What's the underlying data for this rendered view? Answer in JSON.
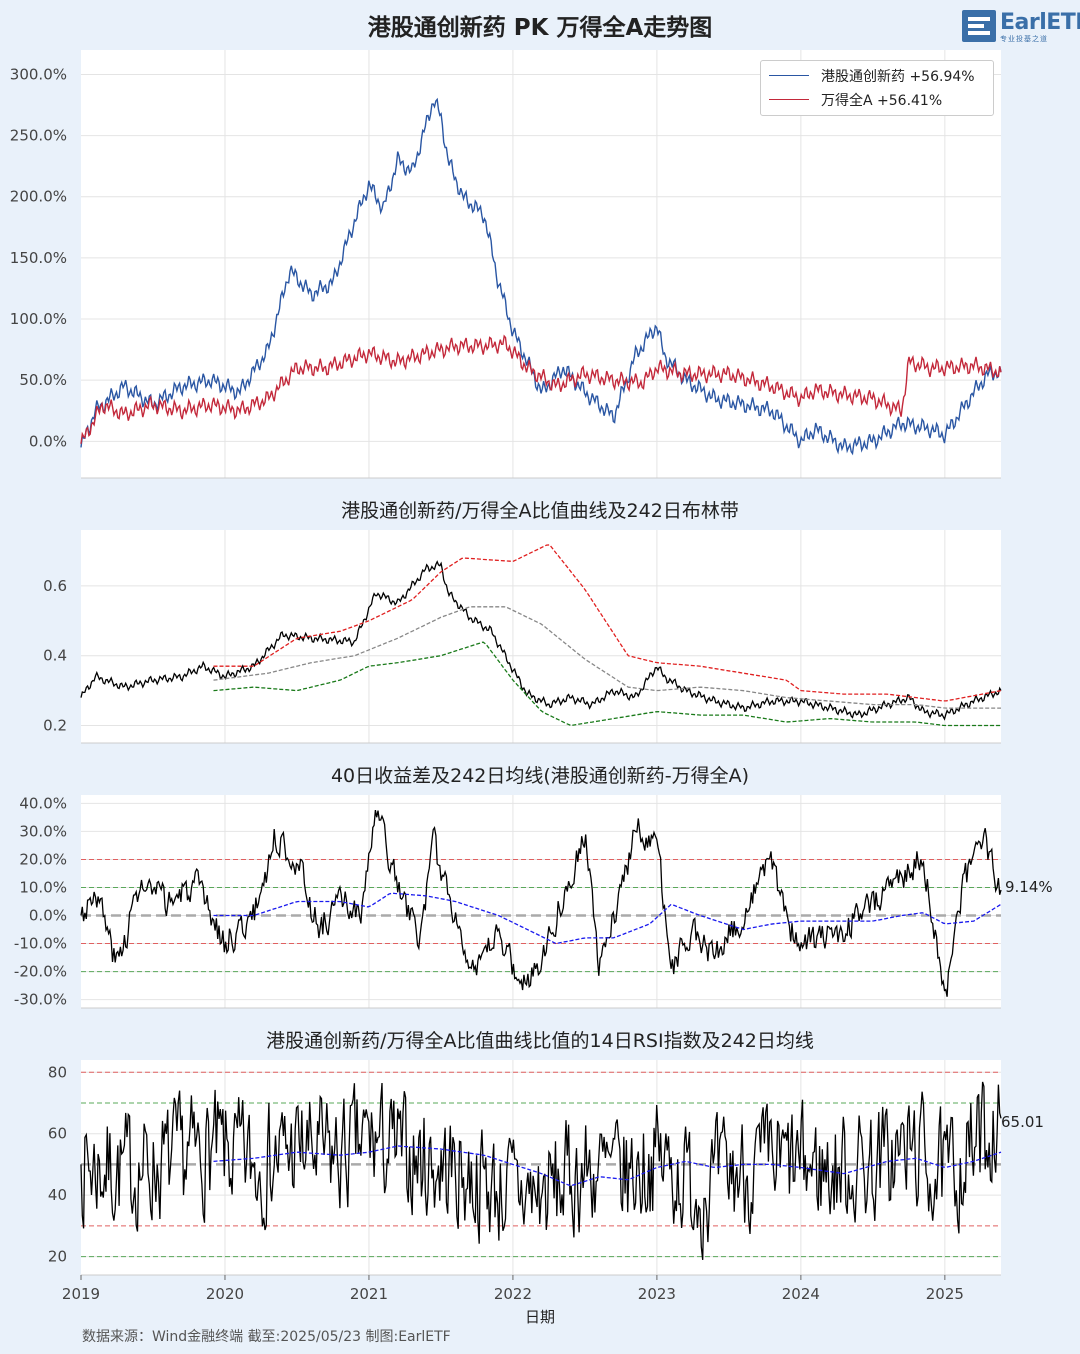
{
  "title": "港股通创新药 PK 万得全A走势图",
  "logo": {
    "text": "EarlETF",
    "subtitle": "专业投基之道"
  },
  "footer": "数据来源：Wind金融终端 截至:2025/05/23 制图:EarlETF",
  "chart_data": [
    {
      "type": "line",
      "title": "港股通创新药 PK 万得全A走势图",
      "ylim": [
        -0.3,
        3.2
      ],
      "yticks": [
        "0.0%",
        "50.0%",
        "100.0%",
        "150.0%",
        "200.0%",
        "250.0%",
        "300.0%"
      ],
      "legend": "top-right",
      "grid": true,
      "series": [
        {
          "name": "港股通创新药",
          "label": "港股通创新药  +56.94%",
          "color": "#2a56a3",
          "x": [
            2019.0,
            2019.1,
            2019.3,
            2019.5,
            2019.7,
            2019.9,
            2020.1,
            2020.3,
            2020.45,
            2020.6,
            2020.75,
            2020.9,
            2021.0,
            2021.1,
            2021.2,
            2021.3,
            2021.45,
            2021.5,
            2021.55,
            2021.65,
            2021.8,
            2021.9,
            2022.0,
            2022.2,
            2022.35,
            2022.5,
            2022.7,
            2022.85,
            2023.0,
            2023.05,
            2023.2,
            2023.4,
            2023.6,
            2023.8,
            2024.0,
            2024.1,
            2024.3,
            2024.5,
            2024.7,
            2024.9,
            2025.0,
            2025.2,
            2025.3,
            2025.39
          ],
          "values": [
            -0.05,
            0.25,
            0.45,
            0.3,
            0.45,
            0.5,
            0.4,
            0.75,
            1.4,
            1.2,
            1.3,
            1.8,
            2.1,
            1.9,
            2.3,
            2.2,
            2.8,
            2.65,
            2.3,
            2.0,
            1.85,
            1.3,
            0.9,
            0.4,
            0.6,
            0.4,
            0.2,
            0.7,
            0.95,
            0.7,
            0.5,
            0.35,
            0.3,
            0.25,
            0.0,
            0.1,
            -0.05,
            0.0,
            0.15,
            0.1,
            0.05,
            0.4,
            0.55,
            0.5694
          ]
        },
        {
          "name": "万得全A",
          "label": "万得全A  +56.41%",
          "color": "#c3283a",
          "x": [
            2019.0,
            2019.15,
            2019.3,
            2019.5,
            2019.7,
            2019.9,
            2020.1,
            2020.3,
            2020.5,
            2020.7,
            2020.9,
            2021.0,
            2021.2,
            2021.4,
            2021.6,
            2021.8,
            2021.95,
            2022.1,
            2022.3,
            2022.5,
            2022.7,
            2022.9,
            2023.0,
            2023.2,
            2023.5,
            2023.8,
            2024.0,
            2024.1,
            2024.3,
            2024.5,
            2024.7,
            2024.75,
            2024.9,
            2025.0,
            2025.2,
            2025.39
          ],
          "values": [
            -0.02,
            0.3,
            0.22,
            0.3,
            0.25,
            0.3,
            0.25,
            0.35,
            0.6,
            0.6,
            0.68,
            0.72,
            0.65,
            0.72,
            0.78,
            0.78,
            0.8,
            0.6,
            0.45,
            0.55,
            0.5,
            0.48,
            0.6,
            0.55,
            0.55,
            0.45,
            0.35,
            0.42,
            0.38,
            0.35,
            0.25,
            0.65,
            0.6,
            0.6,
            0.62,
            0.5641
          ]
        }
      ]
    },
    {
      "type": "line",
      "title": "港股通创新药/万得全A比值曲线及242日布林带",
      "ylim": [
        0.15,
        0.76
      ],
      "yticks": [
        "0.2",
        "0.4",
        "0.6"
      ],
      "grid": true,
      "series": [
        {
          "role": "ratio",
          "color": "#000000",
          "x": [
            2019.0,
            2019.1,
            2019.3,
            2019.5,
            2019.7,
            2019.85,
            2020.0,
            2020.2,
            2020.4,
            2020.6,
            2020.9,
            2021.05,
            2021.2,
            2021.3,
            2021.4,
            2021.5,
            2021.55,
            2021.7,
            2021.85,
            2022.0,
            2022.1,
            2022.25,
            2022.4,
            2022.55,
            2022.7,
            2022.85,
            2023.0,
            2023.05,
            2023.2,
            2023.4,
            2023.6,
            2023.8,
            2024.0,
            2024.2,
            2024.4,
            2024.6,
            2024.75,
            2024.85,
            2025.0,
            2025.2,
            2025.39
          ],
          "values": [
            0.28,
            0.34,
            0.31,
            0.33,
            0.34,
            0.37,
            0.34,
            0.37,
            0.46,
            0.45,
            0.44,
            0.58,
            0.55,
            0.6,
            0.65,
            0.66,
            0.58,
            0.51,
            0.47,
            0.36,
            0.29,
            0.26,
            0.28,
            0.26,
            0.3,
            0.28,
            0.37,
            0.34,
            0.3,
            0.27,
            0.25,
            0.27,
            0.27,
            0.25,
            0.23,
            0.26,
            0.28,
            0.24,
            0.23,
            0.27,
            0.3
          ]
        },
        {
          "role": "upper",
          "color": "#e02020",
          "dashed": true,
          "x": [
            2019.92,
            2020.2,
            2020.5,
            2020.8,
            2021.0,
            2021.3,
            2021.5,
            2021.65,
            2022.0,
            2022.25,
            2022.5,
            2022.8,
            2023.0,
            2023.3,
            2023.6,
            2023.9,
            2024.0,
            2024.3,
            2024.6,
            2024.8,
            2025.0,
            2025.39
          ],
          "values": [
            0.37,
            0.37,
            0.45,
            0.47,
            0.5,
            0.56,
            0.64,
            0.68,
            0.67,
            0.72,
            0.59,
            0.4,
            0.38,
            0.37,
            0.35,
            0.33,
            0.3,
            0.29,
            0.29,
            0.28,
            0.27,
            0.3
          ]
        },
        {
          "role": "middle",
          "color": "#888888",
          "dashed": true,
          "x": [
            2019.92,
            2020.3,
            2020.6,
            2020.9,
            2021.2,
            2021.5,
            2021.7,
            2021.95,
            2022.2,
            2022.5,
            2022.8,
            2023.0,
            2023.3,
            2023.6,
            2023.9,
            2024.2,
            2024.5,
            2024.8,
            2025.0,
            2025.39
          ],
          "values": [
            0.33,
            0.35,
            0.38,
            0.4,
            0.45,
            0.51,
            0.54,
            0.54,
            0.49,
            0.39,
            0.31,
            0.3,
            0.31,
            0.3,
            0.28,
            0.27,
            0.26,
            0.26,
            0.25,
            0.25
          ]
        },
        {
          "role": "lower",
          "color": "#1a7a1a",
          "dashed": true,
          "x": [
            2019.92,
            2020.2,
            2020.5,
            2020.8,
            2021.0,
            2021.2,
            2021.5,
            2021.8,
            2022.0,
            2022.2,
            2022.4,
            2022.7,
            2023.0,
            2023.3,
            2023.6,
            2023.9,
            2024.2,
            2024.5,
            2024.8,
            2025.0,
            2025.39
          ],
          "values": [
            0.3,
            0.31,
            0.3,
            0.33,
            0.37,
            0.38,
            0.4,
            0.44,
            0.33,
            0.24,
            0.2,
            0.22,
            0.24,
            0.23,
            0.23,
            0.21,
            0.22,
            0.21,
            0.21,
            0.2,
            0.2
          ]
        }
      ]
    },
    {
      "type": "line",
      "title": "40日收益差及242日均线(港股通创新药-万得全A)",
      "ylim": [
        -0.33,
        0.43
      ],
      "yticks": [
        "-30.0%",
        "-20.0%",
        "-10.0%",
        "0.0%",
        "10.0%",
        "20.0%",
        "30.0%",
        "40.0%"
      ],
      "hlines": [
        {
          "y": 0.2,
          "color": "#e06060"
        },
        {
          "y": -0.1,
          "color": "#e06060"
        },
        {
          "y": 0.1,
          "color": "#5aa85a"
        },
        {
          "y": -0.2,
          "color": "#5aa85a"
        },
        {
          "y": 0.0,
          "color": "#aaaaaa",
          "thick": true
        }
      ],
      "end_label": "9.14%",
      "series": [
        {
          "role": "spread",
          "color": "#000000",
          "noise": 0.05,
          "seed": 3,
          "x": [
            2019.0,
            2019.1,
            2019.25,
            2019.4,
            2019.6,
            2019.8,
            2020.0,
            2020.2,
            2020.35,
            2020.5,
            2020.65,
            2020.8,
            2020.95,
            2021.05,
            2021.2,
            2021.35,
            2021.45,
            2021.6,
            2021.75,
            2021.9,
            2022.05,
            2022.15,
            2022.3,
            2022.5,
            2022.6,
            2022.75,
            2022.85,
            2023.0,
            2023.1,
            2023.25,
            2023.4,
            2023.6,
            2023.8,
            2023.95,
            2024.1,
            2024.3,
            2024.5,
            2024.7,
            2024.85,
            2025.0,
            2025.1,
            2025.25,
            2025.39
          ],
          "values": [
            0.0,
            0.1,
            -0.18,
            0.1,
            0.05,
            0.1,
            -0.1,
            0.0,
            0.28,
            0.2,
            -0.05,
            0.05,
            0.0,
            0.38,
            0.1,
            -0.08,
            0.25,
            0.0,
            -0.22,
            -0.05,
            -0.25,
            -0.2,
            0.0,
            0.3,
            -0.2,
            0.1,
            0.3,
            0.28,
            -0.2,
            -0.05,
            -0.15,
            0.0,
            0.2,
            -0.08,
            -0.1,
            -0.05,
            0.05,
            0.15,
            0.2,
            -0.3,
            0.05,
            0.3,
            0.0914
          ]
        },
        {
          "role": "ma",
          "color": "#1a1aee",
          "dashed": true,
          "x": [
            2019.92,
            2020.2,
            2020.5,
            2020.8,
            2021.0,
            2021.15,
            2021.4,
            2021.6,
            2021.9,
            2022.1,
            2022.3,
            2022.5,
            2022.7,
            2022.95,
            2023.1,
            2023.3,
            2023.6,
            2023.8,
            2024.0,
            2024.3,
            2024.5,
            2024.7,
            2024.85,
            2025.0,
            2025.2,
            2025.39
          ],
          "values": [
            0.0,
            0.0,
            0.05,
            0.05,
            0.03,
            0.08,
            0.07,
            0.05,
            0.0,
            -0.05,
            -0.1,
            -0.08,
            -0.08,
            -0.03,
            0.04,
            0.0,
            -0.05,
            -0.03,
            -0.02,
            -0.02,
            -0.02,
            0.0,
            0.01,
            -0.03,
            -0.02,
            0.04
          ]
        }
      ]
    },
    {
      "type": "line",
      "title": "港股通创新药/万得全A比值曲线比值的14日RSI指数及242日均线",
      "ylim": [
        14,
        84
      ],
      "yticks": [
        "20",
        "40",
        "60",
        "80"
      ],
      "xticks": [
        "2019",
        "2020",
        "2021",
        "2022",
        "2023",
        "2024",
        "2025"
      ],
      "xlabel": "日期",
      "hlines": [
        {
          "y": 80,
          "color": "#e06060"
        },
        {
          "y": 30,
          "color": "#e06060"
        },
        {
          "y": 70,
          "color": "#5aa85a"
        },
        {
          "y": 20,
          "color": "#5aa85a"
        },
        {
          "y": 50,
          "color": "#aaaaaa",
          "thick": true
        }
      ],
      "end_label": "65.01",
      "series": [
        {
          "role": "rsi",
          "color": "#000000",
          "noise": 17,
          "seed": 7,
          "x": [
            2019.0,
            2019.3,
            2019.6,
            2019.9,
            2020.2,
            2020.5,
            2020.8,
            2021.0,
            2021.3,
            2021.6,
            2021.9,
            2022.2,
            2022.5,
            2022.8,
            2023.0,
            2023.3,
            2023.6,
            2023.9,
            2024.2,
            2024.5,
            2024.8,
            2025.0,
            2025.2,
            2025.39
          ],
          "values": [
            50,
            48,
            50,
            55,
            50,
            55,
            52,
            58,
            52,
            48,
            42,
            40,
            48,
            46,
            52,
            42,
            48,
            50,
            48,
            50,
            55,
            45,
            55,
            65.01
          ]
        },
        {
          "role": "ma",
          "color": "#1a1aee",
          "dashed": true,
          "x": [
            2019.92,
            2020.2,
            2020.5,
            2020.8,
            2021.0,
            2021.2,
            2021.5,
            2021.8,
            2022.0,
            2022.2,
            2022.4,
            2022.6,
            2022.8,
            2023.0,
            2023.2,
            2023.4,
            2023.6,
            2023.8,
            2024.0,
            2024.3,
            2024.6,
            2024.8,
            2025.0,
            2025.2,
            2025.39
          ],
          "values": [
            51,
            52,
            54,
            53,
            54,
            56,
            55,
            53,
            50,
            47,
            43,
            46,
            45,
            49,
            51,
            49,
            50,
            50,
            49,
            47,
            51,
            52,
            49,
            51,
            54
          ]
        }
      ]
    }
  ]
}
